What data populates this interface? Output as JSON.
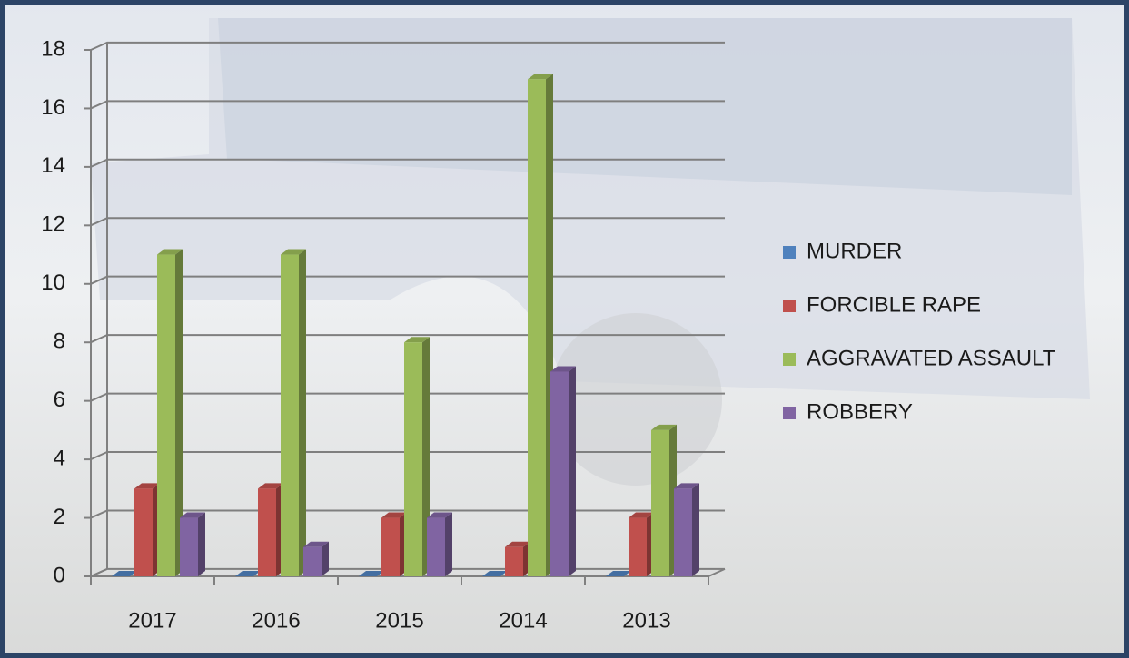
{
  "chart_data": {
    "type": "bar",
    "categories": [
      "2017",
      "2016",
      "2015",
      "2014",
      "2013"
    ],
    "series": [
      {
        "name": "MURDER",
        "color": "#4f81bd",
        "values": [
          0,
          0,
          0,
          0,
          0
        ]
      },
      {
        "name": "FORCIBLE RAPE",
        "color": "#c0504d",
        "values": [
          3,
          3,
          2,
          1,
          2
        ]
      },
      {
        "name": "AGGRAVATED ASSAULT",
        "color": "#9bbb59",
        "values": [
          11,
          11,
          8,
          17,
          5
        ]
      },
      {
        "name": "ROBBERY",
        "color": "#8064a2",
        "values": [
          2,
          1,
          2,
          7,
          3
        ]
      }
    ],
    "ylim": [
      0,
      18
    ],
    "yticks": [
      0,
      2,
      4,
      6,
      8,
      10,
      12,
      14,
      16,
      18
    ],
    "grid": true,
    "legend": "right"
  }
}
